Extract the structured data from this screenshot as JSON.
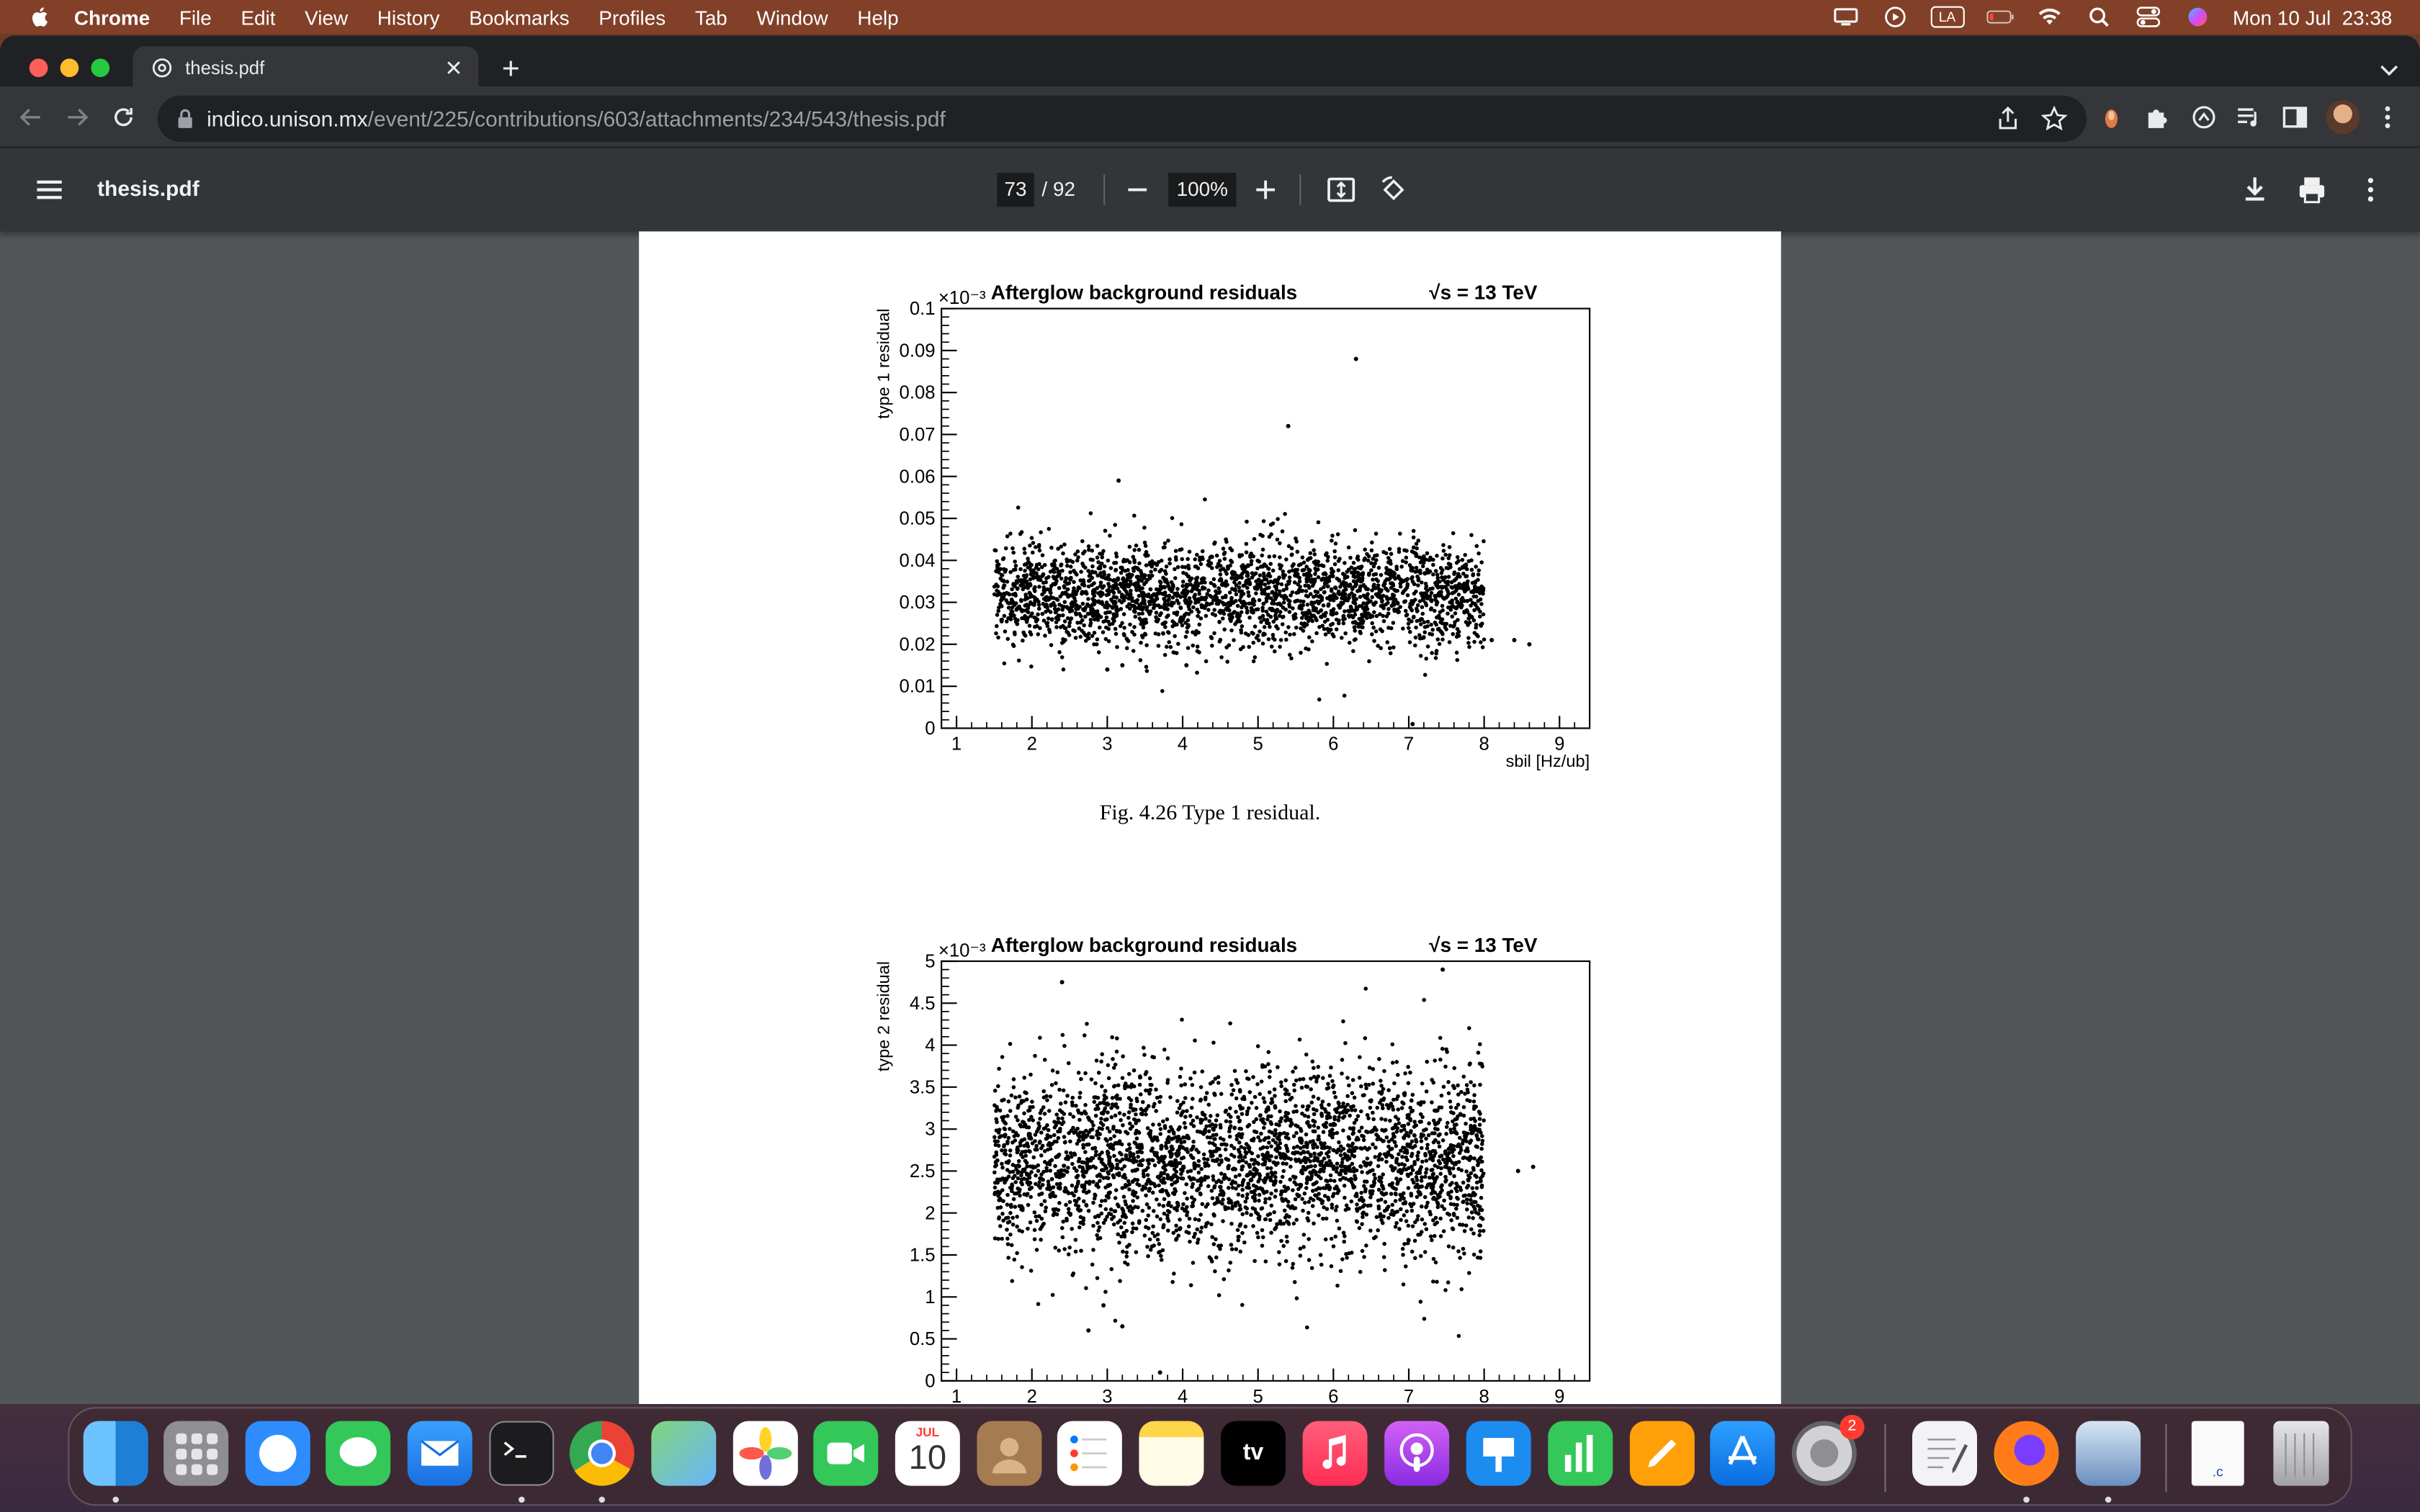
{
  "menubar": {
    "app_name": "Chrome",
    "items": [
      "File",
      "Edit",
      "View",
      "History",
      "Bookmarks",
      "Profiles",
      "Tab",
      "Window",
      "Help"
    ],
    "input_source": "LA",
    "datetime": "Mon 10 Jul  23:38"
  },
  "browser": {
    "tab_title": "thesis.pdf",
    "url_host": "indico.unison.mx",
    "url_path": "/event/225/contributions/603/attachments/234/543/thesis.pdf"
  },
  "pdf_viewer": {
    "file_name": "thesis.pdf",
    "current_page": "73",
    "page_separator": "/",
    "total_pages": "92",
    "zoom": "100%"
  },
  "figures": {
    "fig1_caption": "Fig. 4.26 Type 1 residual."
  },
  "chart_data": [
    {
      "type": "scatter",
      "title": "Afterglow background residuals",
      "annotation": "√s = 13 TeV",
      "exponent_label": "×10⁻³",
      "xlabel": "sbil [Hz/ub]",
      "ylabel": "type 1 residual",
      "xlim": [
        0.8,
        9.4
      ],
      "ylim": [
        0,
        0.1
      ],
      "xticks": [
        "1",
        "2",
        "3",
        "4",
        "5",
        "6",
        "7",
        "8",
        "9"
      ],
      "yticks": [
        "0",
        "0.01",
        "0.02",
        "0.03",
        "0.04",
        "0.05",
        "0.06",
        "0.07",
        "0.08",
        "0.09",
        "0.1"
      ],
      "cluster": {
        "x_range": [
          1.5,
          8.0
        ],
        "y_center": 0.032,
        "y_spread": 0.006,
        "n_points": 2600
      },
      "outliers": [
        {
          "x": 6.3,
          "y": 0.088
        },
        {
          "x": 5.4,
          "y": 0.072
        },
        {
          "x": 3.15,
          "y": 0.059
        },
        {
          "x": 7.05,
          "y": 0.001
        },
        {
          "x": 8.1,
          "y": 0.021
        },
        {
          "x": 8.4,
          "y": 0.021
        },
        {
          "x": 8.6,
          "y": 0.02
        },
        {
          "x": 3.0,
          "y": 0.014
        },
        {
          "x": 3.2,
          "y": 0.015
        },
        {
          "x": 4.05,
          "y": 0.015
        }
      ]
    },
    {
      "type": "scatter",
      "title": "Afterglow background residuals",
      "annotation": "√s = 13 TeV",
      "exponent_label": "×10⁻³",
      "xlabel": "",
      "ylabel": "type 2 residual",
      "xlim": [
        0.8,
        9.4
      ],
      "ylim": [
        0,
        5
      ],
      "xticks": [
        "1",
        "2",
        "3",
        "4",
        "5",
        "6",
        "7",
        "8",
        "9"
      ],
      "yticks": [
        "0",
        "0.5",
        "1",
        "1.5",
        "2",
        "2.5",
        "3",
        "3.5",
        "4",
        "4.5",
        "5"
      ],
      "cluster": {
        "x_range": [
          1.5,
          8.0
        ],
        "y_center": 2.6,
        "y_spread": 0.55,
        "n_points": 3200
      },
      "outliers": [
        {
          "x": 3.7,
          "y": 0.1
        },
        {
          "x": 2.75,
          "y": 0.6
        },
        {
          "x": 3.2,
          "y": 0.65
        },
        {
          "x": 2.95,
          "y": 0.9
        },
        {
          "x": 7.45,
          "y": 4.9
        },
        {
          "x": 8.45,
          "y": 2.5
        },
        {
          "x": 8.65,
          "y": 2.55
        },
        {
          "x": 2.4,
          "y": 4.75
        }
      ]
    }
  ],
  "dock": {
    "calendar_month": "JUL",
    "calendar_day": "10",
    "appletv_label": "tv",
    "settings_badge": "2",
    "file_ext": ".c"
  }
}
